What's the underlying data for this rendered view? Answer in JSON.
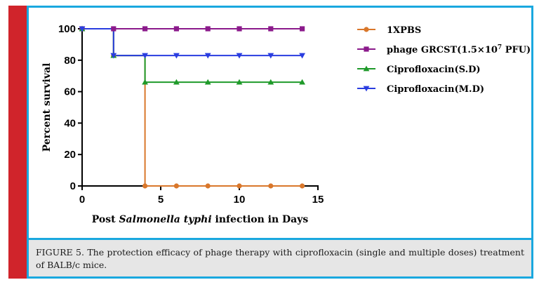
{
  "chart_data": {
    "type": "line",
    "step": true,
    "xlabel_parts": [
      "Post ",
      "Salmonella typhi",
      " infection in Days"
    ],
    "ylabel": "Percent survival",
    "xlim": [
      0,
      15
    ],
    "ylim": [
      0,
      100
    ],
    "xticks": [
      "0",
      "5",
      "10",
      "15"
    ],
    "yticks": [
      "0",
      "20",
      "40",
      "60",
      "80",
      "100"
    ],
    "legend_position": "right",
    "series": [
      {
        "name_parts": [
          "1XPBS"
        ],
        "color": "#d9772b",
        "marker": "circle",
        "steps": [
          [
            0,
            100
          ],
          [
            2,
            100
          ],
          [
            2,
            83
          ],
          [
            4,
            83
          ],
          [
            4,
            0
          ],
          [
            14,
            0
          ]
        ],
        "markers": [
          [
            0,
            100
          ],
          [
            2,
            83
          ],
          [
            4,
            0
          ],
          [
            6,
            0
          ],
          [
            8,
            0
          ],
          [
            10,
            0
          ],
          [
            12,
            0
          ],
          [
            14,
            0
          ]
        ]
      },
      {
        "name_parts": [
          "phage GRCST(1.5×10",
          "7",
          " PFU)"
        ],
        "color": "#8b1a8b",
        "marker": "square",
        "steps": [
          [
            0,
            100
          ],
          [
            14,
            100
          ]
        ],
        "markers": [
          [
            0,
            100
          ],
          [
            2,
            100
          ],
          [
            4,
            100
          ],
          [
            6,
            100
          ],
          [
            8,
            100
          ],
          [
            10,
            100
          ],
          [
            12,
            100
          ],
          [
            14,
            100
          ]
        ]
      },
      {
        "name_parts": [
          "Ciprofloxacin(S.D)"
        ],
        "color": "#1f9a2a",
        "marker": "triangle-up",
        "steps": [
          [
            0,
            100
          ],
          [
            2,
            100
          ],
          [
            2,
            83
          ],
          [
            4,
            83
          ],
          [
            4,
            66
          ],
          [
            14,
            66
          ]
        ],
        "markers": [
          [
            0,
            100
          ],
          [
            2,
            83
          ],
          [
            4,
            66
          ],
          [
            6,
            66
          ],
          [
            8,
            66
          ],
          [
            10,
            66
          ],
          [
            12,
            66
          ],
          [
            14,
            66
          ]
        ]
      },
      {
        "name_parts": [
          "Ciprofloxacin(M.D)"
        ],
        "color": "#2a3de0",
        "marker": "triangle-down",
        "steps": [
          [
            0,
            100
          ],
          [
            2,
            100
          ],
          [
            2,
            83
          ],
          [
            14,
            83
          ]
        ],
        "markers": [
          [
            0,
            100
          ],
          [
            2,
            83
          ],
          [
            4,
            83
          ],
          [
            6,
            83
          ],
          [
            8,
            83
          ],
          [
            10,
            83
          ],
          [
            12,
            83
          ],
          [
            14,
            83
          ]
        ]
      }
    ]
  },
  "caption": "FIGURE 5. The protection efficacy of phage therapy with ciprofloxacin (single and multiple doses) treatment of BALB/c mice.",
  "colors": {
    "accent_red": "#d0242b",
    "frame_blue": "#1aa8df",
    "caption_bg": "#e6e6e6"
  }
}
